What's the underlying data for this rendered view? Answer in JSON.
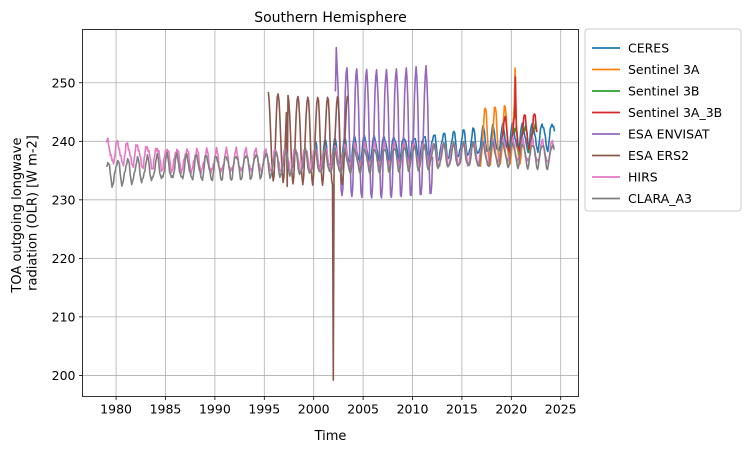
{
  "chart_data": {
    "type": "line",
    "title": "Southern Hemisphere",
    "xlabel": "Time",
    "ylabel": [
      "TOA outgoing longwave",
      "radiation (OLR) [W m-2]"
    ],
    "xlim": [
      1976.6,
      2026.8
    ],
    "ylim": [
      196.4,
      259.1
    ],
    "xticks": [
      1980,
      1985,
      1990,
      1995,
      2000,
      2005,
      2010,
      2015,
      2020,
      2025
    ],
    "yticks": [
      200,
      210,
      220,
      230,
      240,
      250
    ],
    "grid": true,
    "legend_position": "outside-right",
    "series": [
      {
        "name": "CERES",
        "color": "#1f77b4",
        "start": 2000.2,
        "end": 2024.4,
        "period": 1.0,
        "baseline": [
          [
            2000.2,
            237.5
          ],
          [
            2005,
            238.5
          ],
          [
            2010,
            238.7
          ],
          [
            2015,
            239.5
          ],
          [
            2020,
            240.5
          ],
          [
            2024.4,
            241.0
          ]
        ],
        "amplitude": 2.2,
        "peak_phase": 0.15
      },
      {
        "name": "Sentinel 3A",
        "color": "#ff7f0e",
        "start": 2016.8,
        "end": 2021.2,
        "period": 1.0,
        "baseline": [
          [
            2016.8,
            240.5
          ],
          [
            2021.2,
            241.0
          ]
        ],
        "amplitude": 5.0,
        "peak_phase": 0.35,
        "extremes": [
          [
            2020.35,
            252.5
          ]
        ]
      },
      {
        "name": "Sentinel 3B",
        "color": "#2ca02c",
        "start": 2019.5,
        "end": 2022.6,
        "period": 1.0,
        "baseline": [
          [
            2019.5,
            240.3
          ],
          [
            2022.6,
            240.8
          ]
        ],
        "amplitude": 2.0,
        "peak_phase": 0.35
      },
      {
        "name": "Sentinel 3A_3B",
        "color": "#d62728",
        "start": 2019.0,
        "end": 2022.6,
        "period": 1.0,
        "baseline": [
          [
            2019.0,
            240.8
          ],
          [
            2022.6,
            241.5
          ]
        ],
        "amplitude": 3.0,
        "peak_phase": 0.35,
        "extremes": [
          [
            2020.45,
            251.0
          ]
        ]
      },
      {
        "name": "ESA ENVISAT",
        "color": "#9467bd",
        "start": 2002.2,
        "end": 2012.1,
        "period": 1.0,
        "baseline": [
          [
            2002.2,
            241.5
          ],
          [
            2012.1,
            241.5
          ]
        ],
        "amplitude": 11.0,
        "peak_phase": 0.35,
        "extremes": [
          [
            2002.3,
            256.0
          ]
        ]
      },
      {
        "name": "ESA ERS2",
        "color": "#8c564b",
        "start": 1995.4,
        "end": 2003.5,
        "period": 1.0,
        "baseline": [
          [
            1995.4,
            241.0
          ],
          [
            2003.5,
            240.0
          ]
        ],
        "amplitude": 7.5,
        "peak_phase": 0.4,
        "extremes": [
          [
            2001.98,
            199.2
          ],
          [
            1997.3,
            232.3
          ]
        ]
      },
      {
        "name": "HIRS",
        "color": "#e377c2",
        "start": 1979.0,
        "end": 2024.4,
        "period": 1.0,
        "baseline": [
          [
            1979,
            238.3
          ],
          [
            1985,
            237.0
          ],
          [
            1990,
            236.5
          ],
          [
            1995,
            236.6
          ],
          [
            2000,
            237.1
          ],
          [
            2005,
            237.5
          ],
          [
            2010,
            237.7
          ],
          [
            2015,
            238.0
          ],
          [
            2020,
            238.3
          ],
          [
            2024.4,
            238.0
          ]
        ],
        "amplitude": 1.8,
        "peak_phase": 0.15
      },
      {
        "name": "CLARA_A3",
        "color": "#7f7f7f",
        "start": 1979.0,
        "end": 2024.4,
        "period": 1.0,
        "baseline": [
          [
            1979,
            234.5
          ],
          [
            1985,
            235.5
          ],
          [
            1990,
            235.5
          ],
          [
            1995,
            236.0
          ],
          [
            2000,
            236.3
          ],
          [
            2005,
            236.8
          ],
          [
            2010,
            237.2
          ],
          [
            2015,
            237.5
          ],
          [
            2020,
            237.8
          ],
          [
            2024.4,
            237.5
          ]
        ],
        "amplitude": 2.0,
        "peak_phase": 0.15
      }
    ]
  }
}
